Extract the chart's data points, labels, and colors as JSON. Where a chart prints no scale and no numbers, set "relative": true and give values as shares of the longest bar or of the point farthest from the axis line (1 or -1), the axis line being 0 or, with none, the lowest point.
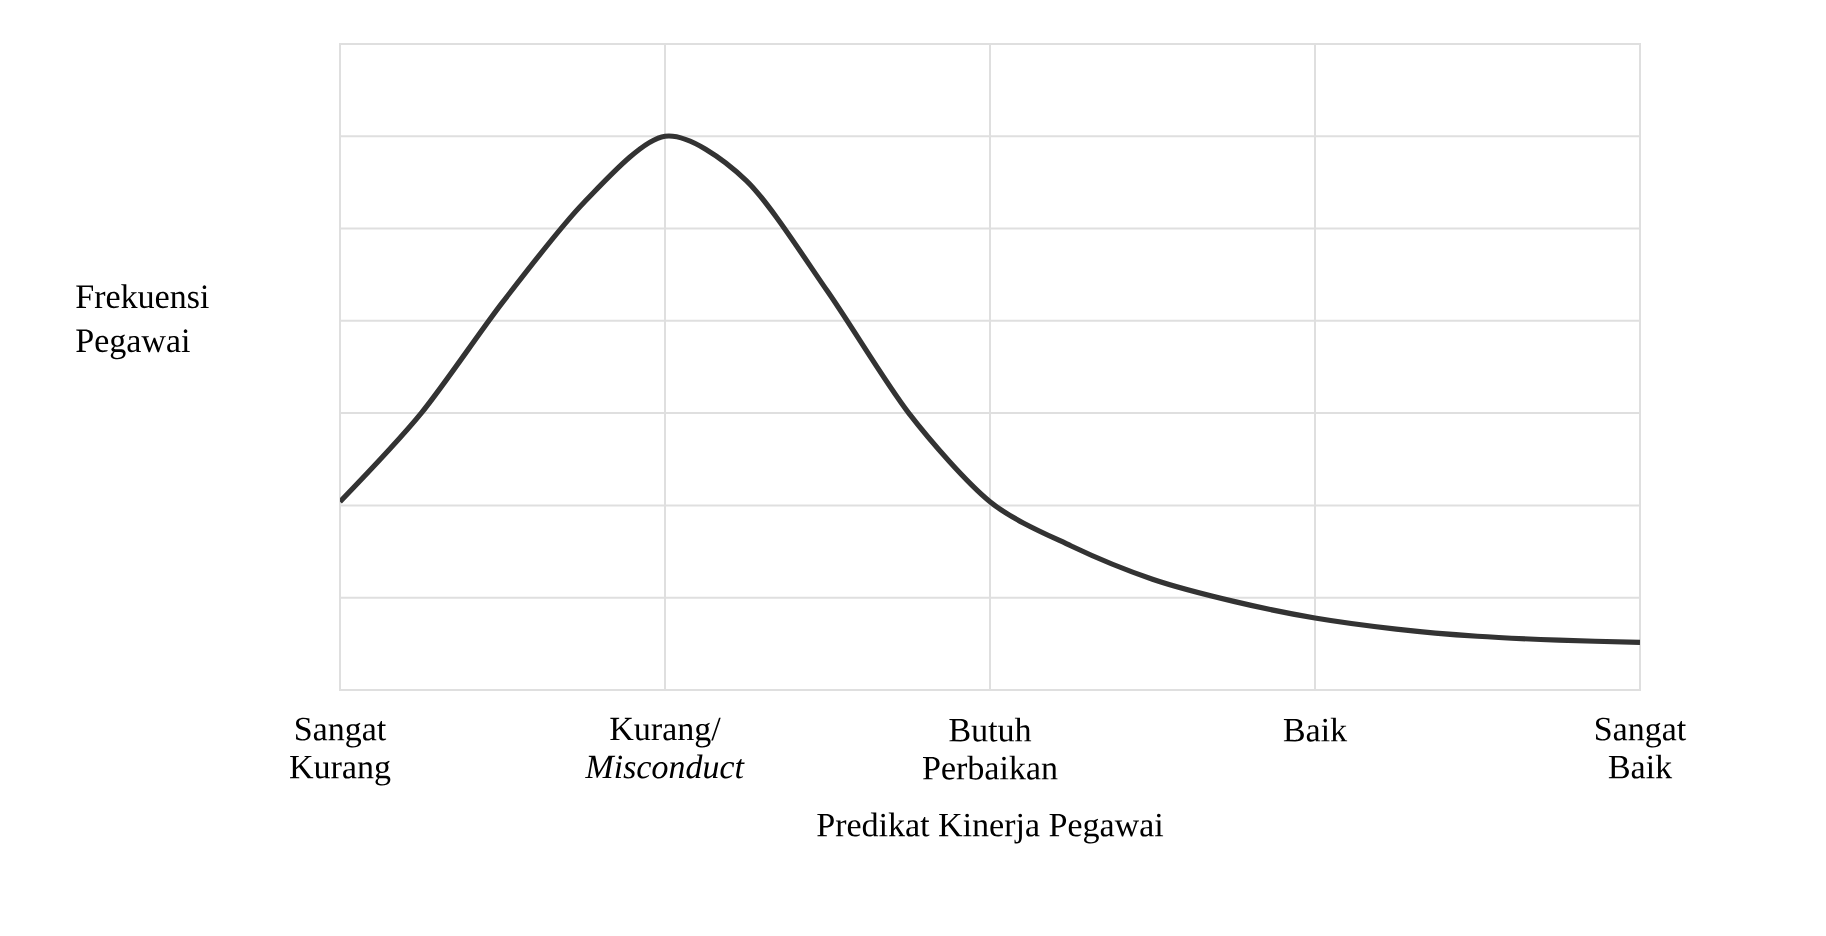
{
  "chart_data": {
    "type": "line",
    "relative": true,
    "xlabel": "Predikat Kinerja Pegawai",
    "ylabel": "Frekuensi Pegawai",
    "categories": [
      "Sangat Kurang",
      null,
      null,
      null,
      "Kurang/ *Misconduct*",
      null,
      null,
      null,
      "Butuh Perbaikan",
      null,
      null,
      null,
      "Baik",
      null,
      null,
      null,
      "Sangat Baik"
    ],
    "values": [
      0.34,
      0.5,
      0.7,
      0.88,
      1,
      0.92,
      0.72,
      0.5,
      0.34,
      0.26,
      0.2,
      0.16,
      0.13,
      0.11,
      0.097,
      0.09,
      0.086
    ],
    "color": "#333333",
    "grid": true,
    "marker": "none",
    "line_style": "solid"
  }
}
